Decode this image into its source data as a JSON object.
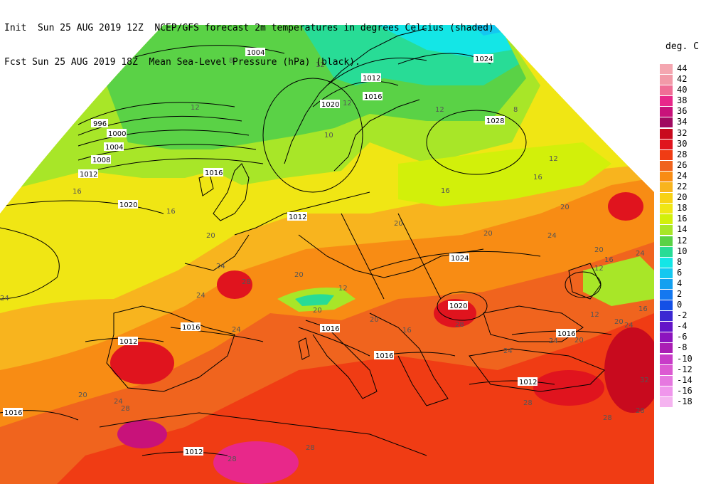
{
  "header": {
    "line1": "Init  Sun 25 AUG 2019 12Z  NCEP/GFS forecast 2m temperatures in degrees Celcius (shaded)",
    "line2": "Fcst Sun 25 AUG 2019 18Z  Mean Sea-Level Pressure (hPa) (black)."
  },
  "legend": {
    "title": "deg. C",
    "entries": [
      {
        "label": "44",
        "color": "#f4a6b0"
      },
      {
        "label": "42",
        "color": "#f29aa8"
      },
      {
        "label": "40",
        "color": "#f06e96"
      },
      {
        "label": "38",
        "color": "#e8288a"
      },
      {
        "label": "36",
        "color": "#c8127a"
      },
      {
        "label": "34",
        "color": "#a00a60"
      },
      {
        "label": "32",
        "color": "#c80a1e"
      },
      {
        "label": "30",
        "color": "#e0141e"
      },
      {
        "label": "28",
        "color": "#f03c14"
      },
      {
        "label": "26",
        "color": "#f0641e"
      },
      {
        "label": "24",
        "color": "#f88c14"
      },
      {
        "label": "22",
        "color": "#f8b41e"
      },
      {
        "label": "20",
        "color": "#f8d214"
      },
      {
        "label": "18",
        "color": "#f0e614"
      },
      {
        "label": "16",
        "color": "#d2f00a"
      },
      {
        "label": "14",
        "color": "#a8e628"
      },
      {
        "label": "12",
        "color": "#5ad246"
      },
      {
        "label": "10",
        "color": "#28dc96"
      },
      {
        "label": "8",
        "color": "#14e6e6"
      },
      {
        "label": "6",
        "color": "#14c8f0"
      },
      {
        "label": "4",
        "color": "#14a0f0"
      },
      {
        "label": "2",
        "color": "#1478f0"
      },
      {
        "label": "0",
        "color": "#1450e6"
      },
      {
        "label": "-2",
        "color": "#3c28d2"
      },
      {
        "label": "-4",
        "color": "#6414c8"
      },
      {
        "label": "-6",
        "color": "#8c14be"
      },
      {
        "label": "-8",
        "color": "#aa1eb4"
      },
      {
        "label": "-10",
        "color": "#c83cc8"
      },
      {
        "label": "-12",
        "color": "#dc5ad2"
      },
      {
        "label": "-14",
        "color": "#e678e0"
      },
      {
        "label": "-16",
        "color": "#f096ec"
      },
      {
        "label": "-18",
        "color": "#f5b4f0"
      }
    ]
  },
  "isobar_labels": {
    "l1004a": "1004",
    "l996": "996",
    "l1000": "1000",
    "l1004b": "1004",
    "l1008": "1008",
    "l1012a": "1012",
    "l1020a": "1020",
    "l1024a": "1024",
    "l1012b": "1012",
    "l1016a": "1016",
    "l1020b": "1020",
    "l1028": "1028",
    "l1016b": "1016",
    "l1024b": "1024",
    "l1020c": "1020",
    "l1016c": "1016",
    "l1012c": "1012",
    "l1016d": "1016",
    "l1016e": "1016",
    "l1016f": "1016",
    "l1012d": "1012",
    "l1016g": "1016",
    "l1012e": "1012",
    "l1012f": "1012"
  },
  "temp_labels": {
    "t8a": "8",
    "t12a": "12",
    "t12b": "12",
    "t12c": "12",
    "t8b": "8",
    "t12d": "12",
    "t12e": "12",
    "t10": "10",
    "t16a": "16",
    "t16b": "16",
    "t16c": "16",
    "t20a": "20",
    "t20b": "20",
    "t20c": "20",
    "t24a": "24",
    "t24b": "24",
    "t28a": "28",
    "t24c": "24",
    "t20d": "20",
    "t12f": "12",
    "t20e": "20",
    "t20f": "20",
    "t28b": "28",
    "t24d": "24",
    "t20g": "20",
    "t16d": "16",
    "t20h": "20",
    "t24e": "24",
    "t28c": "28",
    "t24f": "24",
    "t28d": "28",
    "t20i": "20",
    "t24g": "24",
    "t28e": "28",
    "t32a": "32",
    "t28f": "28",
    "t28g": "28",
    "t24h": "24",
    "t20j": "20",
    "t12g": "12",
    "t16e": "16",
    "t24i": "24",
    "t16f": "16",
    "t12h": "12",
    "t24j": "24",
    "t28h": "28",
    "t20k": "20",
    "t16g": "16"
  }
}
